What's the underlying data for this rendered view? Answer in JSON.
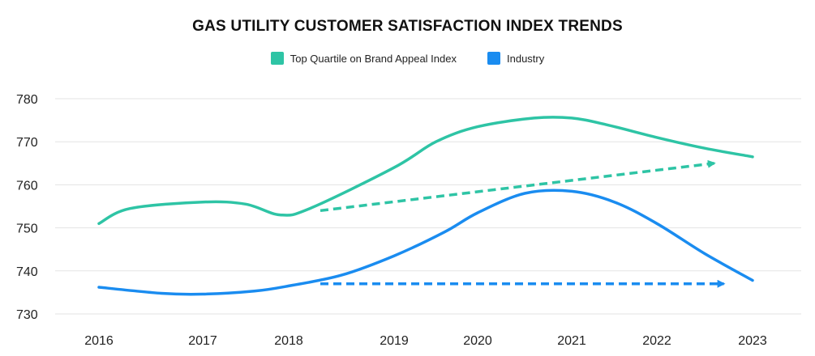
{
  "chart_data": {
    "type": "line",
    "title": "GAS UTILITY CUSTOMER SATISFACTION INDEX TRENDS",
    "xlabel": "",
    "ylabel": "",
    "x": [
      "2016",
      "2017",
      "2018",
      "2019",
      "2020",
      "2021",
      "2022",
      "2023"
    ],
    "x_positions": [
      2016,
      2017,
      2018,
      2019,
      2020,
      2021,
      2022,
      2023
    ],
    "ylim": [
      730,
      780
    ],
    "yticks": [
      730,
      740,
      750,
      760,
      770,
      780
    ],
    "grid": true,
    "legend_position": "top-center",
    "series": [
      {
        "name": "Top Quartile on Brand Appeal Index",
        "color": "#2ec4a5",
        "points": [
          [
            2016,
            751
          ],
          [
            2016.3,
            754.5
          ],
          [
            2017,
            756
          ],
          [
            2017.5,
            755.5
          ],
          [
            2017.9,
            753
          ],
          [
            2018.2,
            754.5
          ],
          [
            2019,
            764
          ],
          [
            2019.5,
            770
          ],
          [
            2020,
            773.5
          ],
          [
            2020.6,
            775.5
          ],
          [
            2021,
            775.5
          ],
          [
            2021.4,
            774
          ],
          [
            2022,
            771
          ],
          [
            2022.5,
            768.5
          ],
          [
            2023,
            766.5
          ]
        ]
      },
      {
        "name": "Industry",
        "color": "#1a8cf0",
        "points": [
          [
            2016,
            736.2
          ],
          [
            2016.6,
            734.8
          ],
          [
            2017,
            734.6
          ],
          [
            2017.6,
            735.3
          ],
          [
            2018,
            736.5
          ],
          [
            2018.5,
            739
          ],
          [
            2019,
            743.5
          ],
          [
            2019.6,
            749
          ],
          [
            2020,
            753.5
          ],
          [
            2020.5,
            758
          ],
          [
            2021,
            758.5
          ],
          [
            2021.5,
            756
          ],
          [
            2022,
            751
          ],
          [
            2022.5,
            744
          ],
          [
            2023,
            737.8
          ]
        ]
      }
    ],
    "trend_arrows": [
      {
        "series": "Top Quartile on Brand Appeal Index",
        "color": "#2ec4a5",
        "from": [
          2018.3,
          754
        ],
        "to": [
          2022.6,
          765
        ]
      },
      {
        "series": "Industry",
        "color": "#1a8cf0",
        "from": [
          2018.3,
          737
        ],
        "to": [
          2022.7,
          737
        ]
      }
    ]
  }
}
